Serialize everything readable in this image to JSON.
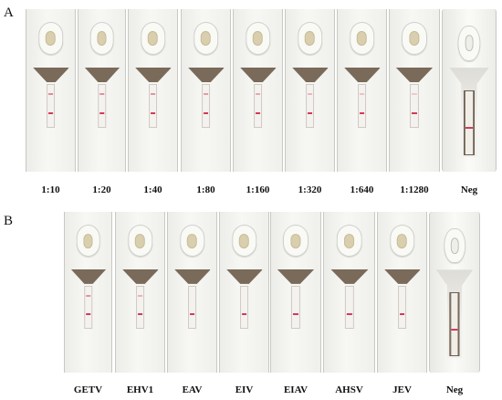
{
  "panels": [
    {
      "letter": "A",
      "strips": [
        {
          "label": "1:10"
        },
        {
          "label": "1:20"
        },
        {
          "label": "1:40"
        },
        {
          "label": "1:80"
        },
        {
          "label": "1:160"
        },
        {
          "label": "1:320"
        },
        {
          "label": "1:640"
        },
        {
          "label": "1:1280"
        },
        {
          "label": "Neg"
        }
      ]
    },
    {
      "letter": "B",
      "strips": [
        {
          "label": "GETV"
        },
        {
          "label": "EHV1"
        },
        {
          "label": "EAV"
        },
        {
          "label": "EIV"
        },
        {
          "label": "EIAV"
        },
        {
          "label": "AHSV"
        },
        {
          "label": "JEV"
        },
        {
          "label": "Neg"
        }
      ]
    }
  ],
  "colors": {
    "control_band": "#d23a5a",
    "test_band_faint": "#e8b7c2",
    "funnel_brown": "#7a6a5a",
    "sample_pad": "#d9cfae"
  }
}
